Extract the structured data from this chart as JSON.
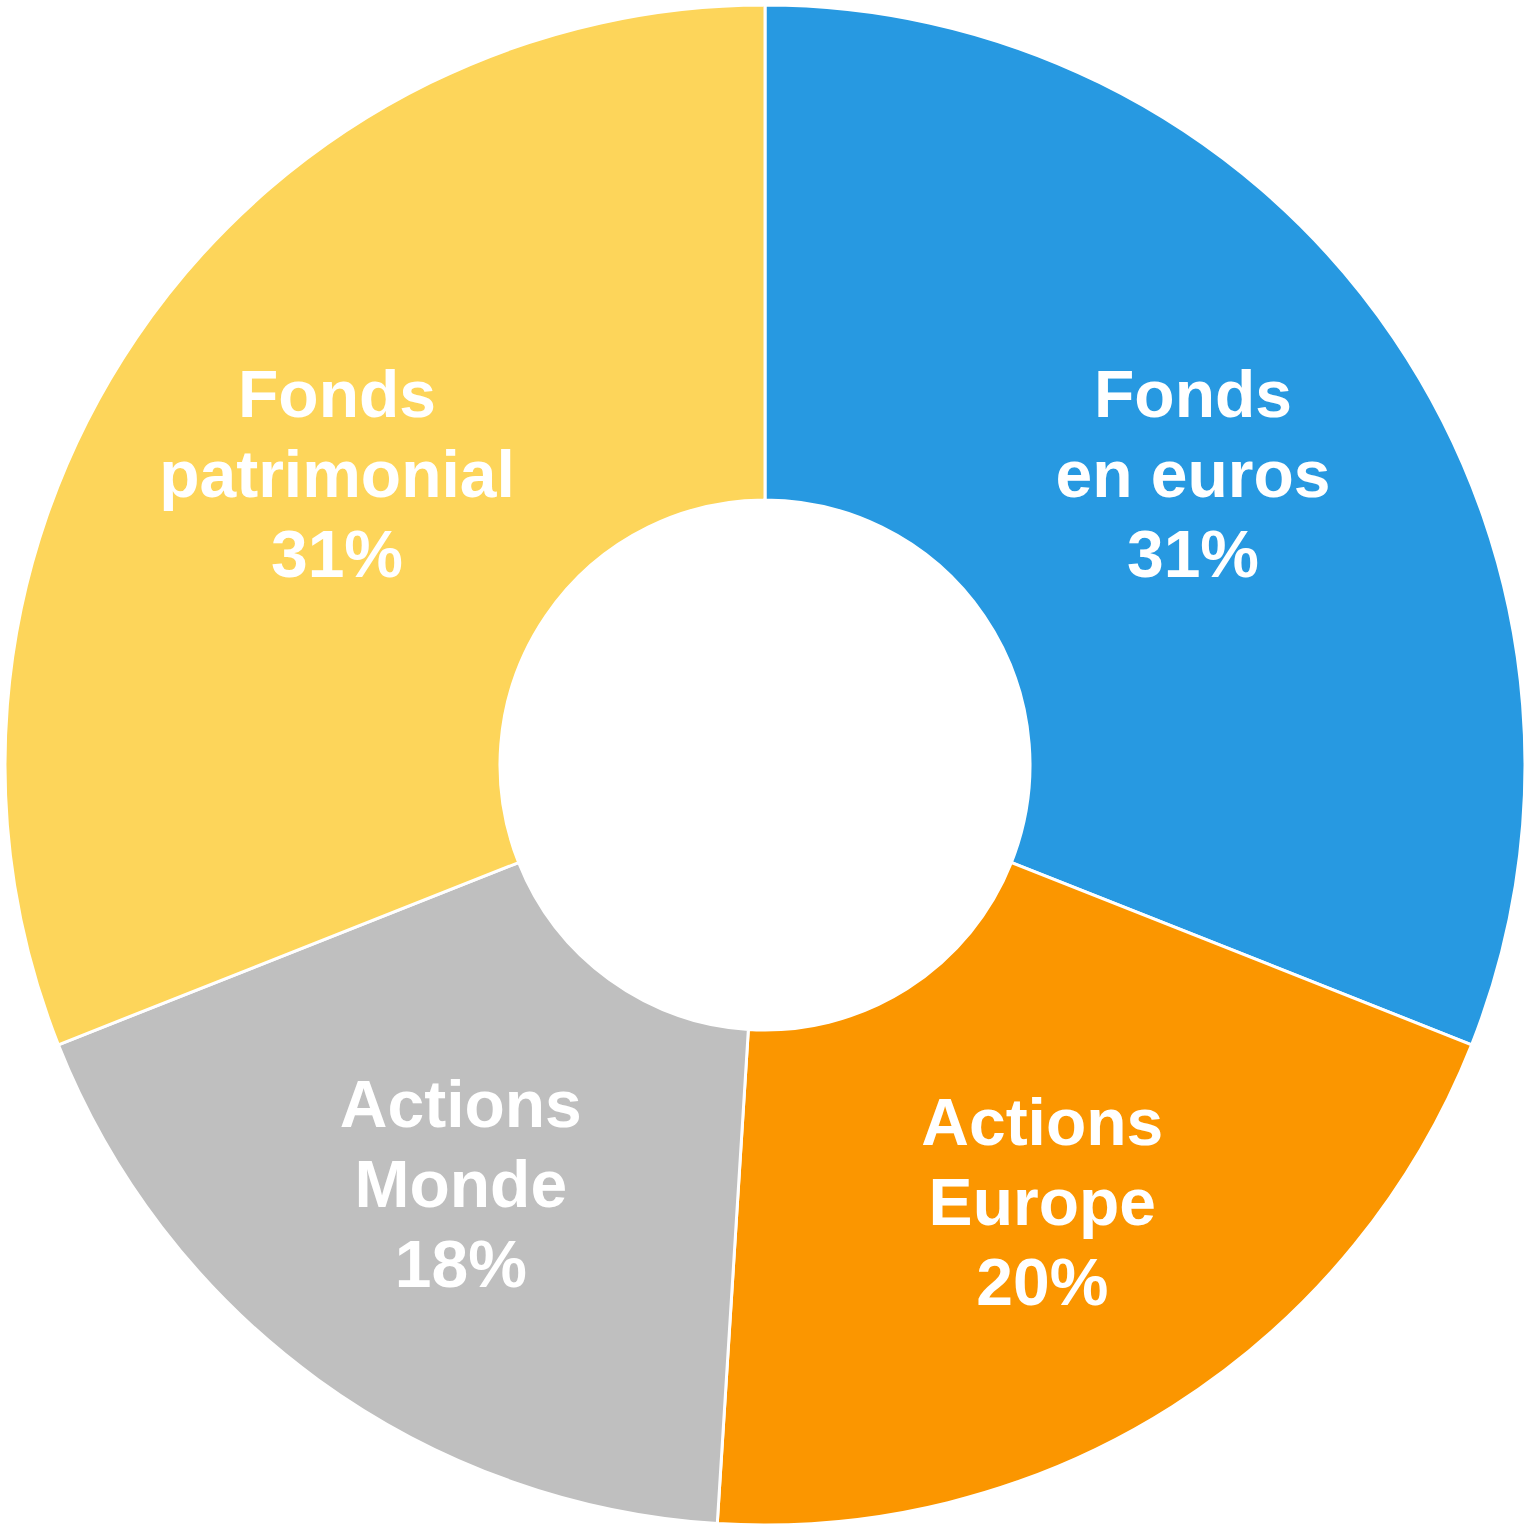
{
  "chart_data": {
    "type": "donut",
    "categories": [
      "Fonds en euros",
      "Actions Europe",
      "Actions Monde",
      "Fonds patrimonial"
    ],
    "values": [
      31,
      20,
      18,
      31
    ],
    "colors": [
      "#2799e1",
      "#fb9600",
      "#bfbfbf",
      "#fdd55a"
    ],
    "value_labels": [
      "31%",
      "20%",
      "18%",
      "31%"
    ]
  }
}
